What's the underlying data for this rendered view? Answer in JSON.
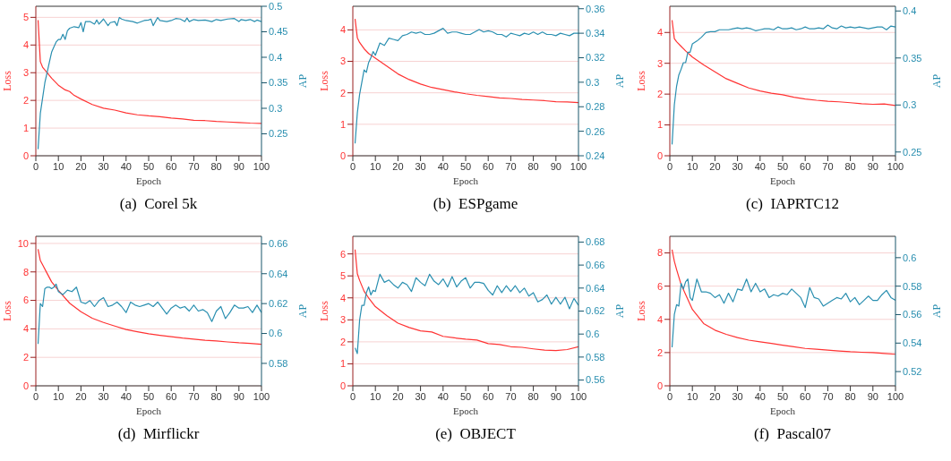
{
  "chart_data": [
    {
      "type": "line",
      "title": "(a)  Corel 5k",
      "xlabel": "Epoch",
      "ylabel": "Loss",
      "y2label": "AP",
      "xlim": [
        0,
        100
      ],
      "xticks": [
        0,
        10,
        20,
        30,
        40,
        50,
        60,
        70,
        80,
        90,
        100
      ],
      "ylim": [
        0,
        5.4
      ],
      "yticks": [
        0,
        1,
        2,
        3,
        4,
        5
      ],
      "y2lim": [
        0.207,
        0.5
      ],
      "y2ticks": [
        0.25,
        0.3,
        0.35,
        0.4,
        0.45,
        0.5
      ],
      "grid": true,
      "series": [
        {
          "color": "#ff3333",
          "x": [
            1,
            2,
            3,
            5,
            7,
            10,
            13,
            15,
            17,
            20,
            25,
            30,
            35,
            40,
            45,
            50,
            55,
            60,
            65,
            70,
            75,
            80,
            85,
            90,
            95,
            100
          ],
          "values": [
            4.9,
            3.4,
            3.2,
            3.0,
            2.8,
            2.55,
            2.38,
            2.32,
            2.18,
            2.05,
            1.85,
            1.72,
            1.65,
            1.55,
            1.48,
            1.44,
            1.41,
            1.36,
            1.33,
            1.28,
            1.27,
            1.24,
            1.22,
            1.2,
            1.18,
            1.17
          ]
        },
        {
          "color": "#2a8fb0",
          "axis": "y2",
          "x": [
            1,
            2,
            3,
            4,
            5,
            6,
            7,
            8,
            9,
            10,
            11,
            12,
            13,
            14,
            15,
            17,
            19,
            20,
            21,
            22,
            24,
            26,
            27,
            28,
            30,
            32,
            33,
            35,
            36,
            37,
            38,
            40,
            43,
            45,
            48,
            50,
            51,
            52,
            54,
            55,
            58,
            60,
            62,
            64,
            66,
            67,
            68,
            70,
            72,
            75,
            78,
            80,
            82,
            85,
            88,
            90,
            91,
            93,
            95,
            97,
            98,
            100
          ],
          "values": [
            0.22,
            0.29,
            0.32,
            0.35,
            0.37,
            0.39,
            0.41,
            0.42,
            0.43,
            0.435,
            0.435,
            0.445,
            0.435,
            0.452,
            0.457,
            0.46,
            0.458,
            0.468,
            0.45,
            0.47,
            0.47,
            0.465,
            0.473,
            0.465,
            0.475,
            0.462,
            0.468,
            0.47,
            0.462,
            0.478,
            0.475,
            0.472,
            0.47,
            0.467,
            0.472,
            0.473,
            0.475,
            0.462,
            0.478,
            0.472,
            0.47,
            0.472,
            0.476,
            0.475,
            0.47,
            0.477,
            0.47,
            0.474,
            0.472,
            0.473,
            0.47,
            0.474,
            0.472,
            0.475,
            0.476,
            0.47,
            0.474,
            0.472,
            0.474,
            0.47,
            0.473,
            0.47
          ]
        }
      ]
    },
    {
      "type": "line",
      "title": "(b)  ESPgame",
      "xlabel": "Epoch",
      "ylabel": "Loss",
      "y2label": "AP",
      "xlim": [
        0,
        100
      ],
      "xticks": [
        0,
        10,
        20,
        30,
        40,
        50,
        60,
        70,
        80,
        90,
        100
      ],
      "ylim": [
        0,
        4.75
      ],
      "yticks": [
        0,
        1,
        2,
        3,
        4
      ],
      "y2lim": [
        0.24,
        0.362
      ],
      "y2ticks": [
        0.24,
        0.26,
        0.28,
        0.3,
        0.32,
        0.34,
        0.36
      ],
      "grid": true,
      "series": [
        {
          "color": "#ff3333",
          "x": [
            1,
            2,
            3,
            5,
            7,
            10,
            15,
            20,
            25,
            30,
            35,
            40,
            45,
            50,
            55,
            60,
            65,
            70,
            75,
            80,
            85,
            90,
            95,
            100
          ],
          "values": [
            4.35,
            3.75,
            3.6,
            3.4,
            3.25,
            3.1,
            2.85,
            2.6,
            2.42,
            2.28,
            2.17,
            2.1,
            2.03,
            1.97,
            1.92,
            1.88,
            1.84,
            1.82,
            1.79,
            1.77,
            1.75,
            1.72,
            1.71,
            1.69
          ]
        },
        {
          "color": "#2a8fb0",
          "axis": "y2",
          "x": [
            1,
            2,
            3,
            4,
            5,
            6,
            7,
            8,
            9,
            10,
            12,
            14,
            16,
            18,
            20,
            22,
            24,
            26,
            28,
            30,
            32,
            34,
            36,
            38,
            40,
            42,
            44,
            46,
            48,
            50,
            52,
            54,
            56,
            58,
            60,
            62,
            64,
            66,
            68,
            70,
            72,
            74,
            76,
            78,
            80,
            82,
            84,
            86,
            88,
            90,
            92,
            94,
            96,
            98,
            100
          ],
          "values": [
            0.25,
            0.275,
            0.29,
            0.3,
            0.31,
            0.308,
            0.316,
            0.32,
            0.325,
            0.322,
            0.332,
            0.33,
            0.336,
            0.335,
            0.334,
            0.338,
            0.339,
            0.341,
            0.34,
            0.341,
            0.339,
            0.339,
            0.34,
            0.342,
            0.344,
            0.34,
            0.341,
            0.341,
            0.34,
            0.339,
            0.339,
            0.341,
            0.343,
            0.341,
            0.342,
            0.341,
            0.339,
            0.339,
            0.337,
            0.34,
            0.339,
            0.338,
            0.34,
            0.339,
            0.341,
            0.339,
            0.341,
            0.339,
            0.339,
            0.338,
            0.34,
            0.339,
            0.338,
            0.34,
            0.34
          ]
        }
      ]
    },
    {
      "type": "line",
      "title": "(c)  IAPRTC12",
      "xlabel": "Epoch",
      "ylabel": "Loss",
      "y2label": "AP",
      "xlim": [
        0,
        100
      ],
      "xticks": [
        0,
        10,
        20,
        30,
        40,
        50,
        60,
        70,
        80,
        90,
        100
      ],
      "ylim": [
        0,
        4.85
      ],
      "yticks": [
        0,
        1,
        2,
        3,
        4
      ],
      "y2lim": [
        0.246,
        0.405
      ],
      "y2ticks": [
        0.25,
        0.3,
        0.35,
        0.4
      ],
      "grid": true,
      "series": [
        {
          "color": "#ff3333",
          "x": [
            1,
            2,
            3,
            5,
            7,
            10,
            15,
            20,
            25,
            30,
            35,
            40,
            45,
            50,
            55,
            60,
            65,
            70,
            75,
            80,
            85,
            90,
            95,
            100
          ],
          "values": [
            4.4,
            3.8,
            3.7,
            3.55,
            3.4,
            3.2,
            2.95,
            2.72,
            2.5,
            2.35,
            2.2,
            2.1,
            2.03,
            1.98,
            1.9,
            1.84,
            1.8,
            1.77,
            1.75,
            1.72,
            1.69,
            1.67,
            1.68,
            1.63
          ]
        },
        {
          "color": "#2a8fb0",
          "axis": "y2",
          "x": [
            1,
            2,
            3,
            4,
            5,
            6,
            7,
            8,
            9,
            10,
            12,
            14,
            16,
            18,
            20,
            22,
            24,
            26,
            28,
            30,
            32,
            34,
            36,
            38,
            40,
            42,
            44,
            46,
            48,
            50,
            52,
            54,
            56,
            58,
            60,
            62,
            64,
            66,
            68,
            70,
            72,
            74,
            76,
            78,
            80,
            82,
            84,
            86,
            88,
            90,
            92,
            94,
            96,
            98,
            100
          ],
          "values": [
            0.258,
            0.3,
            0.32,
            0.332,
            0.338,
            0.345,
            0.345,
            0.356,
            0.356,
            0.365,
            0.368,
            0.372,
            0.377,
            0.378,
            0.378,
            0.38,
            0.38,
            0.38,
            0.381,
            0.382,
            0.381,
            0.382,
            0.381,
            0.379,
            0.38,
            0.381,
            0.381,
            0.38,
            0.383,
            0.381,
            0.381,
            0.382,
            0.38,
            0.381,
            0.383,
            0.381,
            0.381,
            0.382,
            0.381,
            0.385,
            0.382,
            0.381,
            0.384,
            0.382,
            0.383,
            0.382,
            0.383,
            0.382,
            0.381,
            0.382,
            0.383,
            0.383,
            0.38,
            0.384,
            0.383
          ]
        }
      ]
    },
    {
      "type": "line",
      "title": "(d)  Mirflickr",
      "xlabel": "Epoch",
      "ylabel": "Loss",
      "y2label": "AP",
      "xlim": [
        0,
        100
      ],
      "xticks": [
        0,
        10,
        20,
        30,
        40,
        50,
        60,
        70,
        80,
        90,
        100
      ],
      "ylim": [
        0,
        10.5
      ],
      "yticks": [
        0,
        2,
        4,
        6,
        8,
        10
      ],
      "y2lim": [
        0.565,
        0.665
      ],
      "y2ticks": [
        0.58,
        0.6,
        0.62,
        0.64,
        0.66
      ],
      "grid": true,
      "series": [
        {
          "color": "#ff3333",
          "x": [
            1,
            2,
            3,
            5,
            7,
            10,
            15,
            20,
            25,
            30,
            35,
            40,
            45,
            50,
            55,
            60,
            65,
            70,
            75,
            80,
            85,
            90,
            95,
            100
          ],
          "values": [
            9.6,
            8.8,
            8.5,
            7.9,
            7.3,
            6.7,
            5.8,
            5.2,
            4.75,
            4.45,
            4.2,
            3.95,
            3.8,
            3.65,
            3.55,
            3.45,
            3.35,
            3.28,
            3.2,
            3.15,
            3.08,
            3.02,
            2.98,
            2.92
          ]
        },
        {
          "color": "#2a8fb0",
          "axis": "y2",
          "x": [
            1,
            2,
            3,
            4,
            5,
            6,
            7,
            8,
            9,
            10,
            12,
            14,
            16,
            18,
            20,
            22,
            24,
            26,
            28,
            30,
            32,
            34,
            36,
            38,
            40,
            42,
            44,
            46,
            48,
            50,
            52,
            54,
            56,
            58,
            60,
            62,
            64,
            66,
            68,
            70,
            72,
            74,
            76,
            78,
            80,
            82,
            84,
            86,
            88,
            90,
            92,
            94,
            96,
            98,
            100
          ],
          "values": [
            0.593,
            0.62,
            0.618,
            0.63,
            0.631,
            0.631,
            0.63,
            0.631,
            0.633,
            0.628,
            0.626,
            0.629,
            0.628,
            0.631,
            0.621,
            0.62,
            0.622,
            0.618,
            0.622,
            0.624,
            0.618,
            0.619,
            0.621,
            0.618,
            0.614,
            0.621,
            0.619,
            0.618,
            0.619,
            0.62,
            0.618,
            0.621,
            0.617,
            0.613,
            0.617,
            0.619,
            0.617,
            0.618,
            0.615,
            0.619,
            0.615,
            0.616,
            0.614,
            0.608,
            0.615,
            0.618,
            0.61,
            0.614,
            0.619,
            0.617,
            0.617,
            0.618,
            0.614,
            0.619,
            0.614
          ]
        }
      ]
    },
    {
      "type": "line",
      "title": "(e)  OBJECT",
      "xlabel": "Epoch",
      "ylabel": "Loss",
      "y2label": "AP",
      "xlim": [
        0,
        100
      ],
      "xticks": [
        0,
        10,
        20,
        30,
        40,
        50,
        60,
        70,
        80,
        90,
        100
      ],
      "ylim": [
        0,
        6.8
      ],
      "yticks": [
        0,
        1,
        2,
        3,
        4,
        5,
        6
      ],
      "y2lim": [
        0.555,
        0.685
      ],
      "y2ticks": [
        0.56,
        0.58,
        0.6,
        0.62,
        0.64,
        0.66,
        0.68
      ],
      "grid": true,
      "series": [
        {
          "color": "#ff3333",
          "x": [
            1,
            2,
            3,
            5,
            7,
            10,
            15,
            20,
            25,
            30,
            35,
            40,
            45,
            50,
            55,
            60,
            65,
            70,
            75,
            80,
            85,
            90,
            95,
            100
          ],
          "values": [
            6.2,
            5.1,
            4.8,
            4.3,
            4.0,
            3.6,
            3.2,
            2.85,
            2.65,
            2.5,
            2.45,
            2.25,
            2.18,
            2.12,
            2.08,
            1.92,
            1.88,
            1.78,
            1.75,
            1.68,
            1.62,
            1.6,
            1.65,
            1.78
          ]
        },
        {
          "color": "#2a8fb0",
          "axis": "y2",
          "x": [
            1,
            2,
            3,
            4,
            5,
            6,
            7,
            8,
            9,
            10,
            12,
            14,
            16,
            18,
            20,
            22,
            24,
            26,
            28,
            30,
            32,
            34,
            36,
            38,
            40,
            42,
            44,
            46,
            48,
            50,
            52,
            54,
            56,
            58,
            60,
            62,
            64,
            66,
            68,
            70,
            72,
            74,
            76,
            78,
            80,
            82,
            84,
            86,
            88,
            90,
            92,
            94,
            96,
            98,
            100
          ],
          "values": [
            0.588,
            0.583,
            0.612,
            0.625,
            0.625,
            0.636,
            0.641,
            0.634,
            0.638,
            0.637,
            0.652,
            0.645,
            0.647,
            0.643,
            0.64,
            0.645,
            0.643,
            0.637,
            0.649,
            0.645,
            0.642,
            0.652,
            0.646,
            0.643,
            0.648,
            0.641,
            0.65,
            0.641,
            0.646,
            0.649,
            0.64,
            0.645,
            0.645,
            0.644,
            0.638,
            0.634,
            0.642,
            0.636,
            0.642,
            0.637,
            0.642,
            0.636,
            0.64,
            0.633,
            0.636,
            0.628,
            0.63,
            0.634,
            0.626,
            0.632,
            0.626,
            0.632,
            0.622,
            0.631,
            0.625
          ]
        }
      ]
    },
    {
      "type": "line",
      "title": "(f)  Pascal07",
      "xlabel": "Epoch",
      "ylabel": "Loss",
      "y2label": "AP",
      "xlim": [
        0,
        100
      ],
      "xticks": [
        0,
        10,
        20,
        30,
        40,
        50,
        60,
        70,
        80,
        90,
        100
      ],
      "ylim": [
        0,
        9
      ],
      "yticks": [
        0,
        2,
        4,
        6,
        8
      ],
      "y2lim": [
        0.51,
        0.615
      ],
      "y2ticks": [
        0.52,
        0.54,
        0.56,
        0.58,
        0.6
      ],
      "grid": true,
      "series": [
        {
          "color": "#ff3333",
          "x": [
            1,
            2,
            3,
            5,
            7,
            10,
            15,
            20,
            25,
            30,
            35,
            40,
            45,
            50,
            55,
            60,
            65,
            70,
            75,
            80,
            85,
            90,
            95,
            100
          ],
          "values": [
            8.2,
            7.5,
            7.0,
            6.1,
            5.5,
            4.6,
            3.75,
            3.35,
            3.1,
            2.9,
            2.75,
            2.65,
            2.55,
            2.45,
            2.35,
            2.25,
            2.2,
            2.15,
            2.1,
            2.05,
            2.02,
            2.0,
            1.95,
            1.9
          ]
        },
        {
          "color": "#2a8fb0",
          "axis": "y2",
          "x": [
            1,
            2,
            3,
            4,
            5,
            6,
            7,
            8,
            9,
            10,
            12,
            14,
            16,
            18,
            20,
            22,
            24,
            26,
            28,
            30,
            32,
            34,
            36,
            38,
            40,
            42,
            44,
            46,
            48,
            50,
            52,
            54,
            56,
            58,
            60,
            62,
            64,
            66,
            68,
            70,
            72,
            74,
            76,
            78,
            80,
            82,
            84,
            86,
            88,
            90,
            92,
            94,
            96,
            98,
            100
          ],
          "values": [
            0.537,
            0.56,
            0.567,
            0.566,
            0.582,
            0.578,
            0.583,
            0.585,
            0.572,
            0.57,
            0.585,
            0.576,
            0.576,
            0.575,
            0.572,
            0.574,
            0.568,
            0.575,
            0.569,
            0.578,
            0.577,
            0.585,
            0.576,
            0.582,
            0.576,
            0.578,
            0.572,
            0.574,
            0.573,
            0.575,
            0.574,
            0.578,
            0.575,
            0.572,
            0.565,
            0.579,
            0.572,
            0.571,
            0.566,
            0.568,
            0.57,
            0.572,
            0.571,
            0.575,
            0.569,
            0.572,
            0.567,
            0.57,
            0.573,
            0.57,
            0.57,
            0.574,
            0.577,
            0.572,
            0.57
          ]
        }
      ]
    }
  ]
}
